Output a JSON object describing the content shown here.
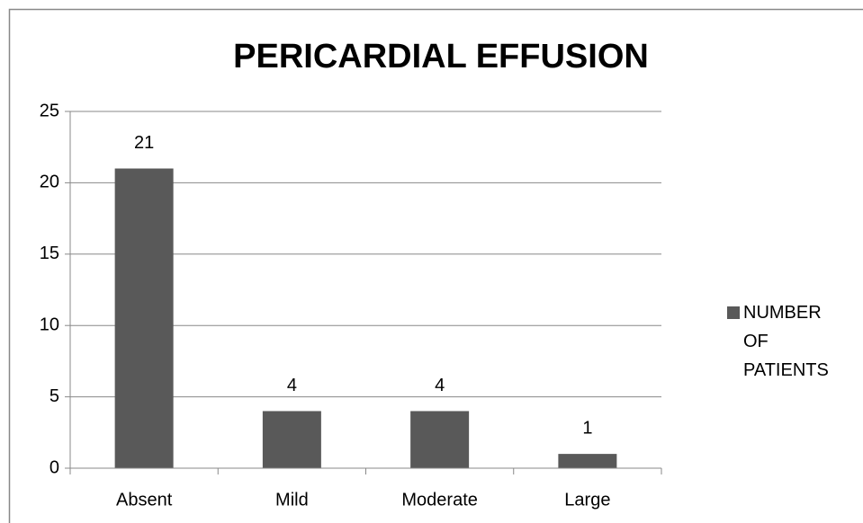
{
  "chart_data": {
    "type": "bar",
    "title": "PERICARDIAL EFFUSION",
    "categories": [
      "Absent",
      "Mild",
      "Moderate",
      "Large"
    ],
    "series": [
      {
        "name": "NUMBER OF PATIENTS",
        "color": "#595959",
        "values": [
          21,
          4,
          4,
          1
        ]
      }
    ],
    "ylim": [
      0,
      25
    ],
    "yticks": [
      0,
      5,
      10,
      15,
      20,
      25
    ],
    "grid": true,
    "legend": "right"
  }
}
